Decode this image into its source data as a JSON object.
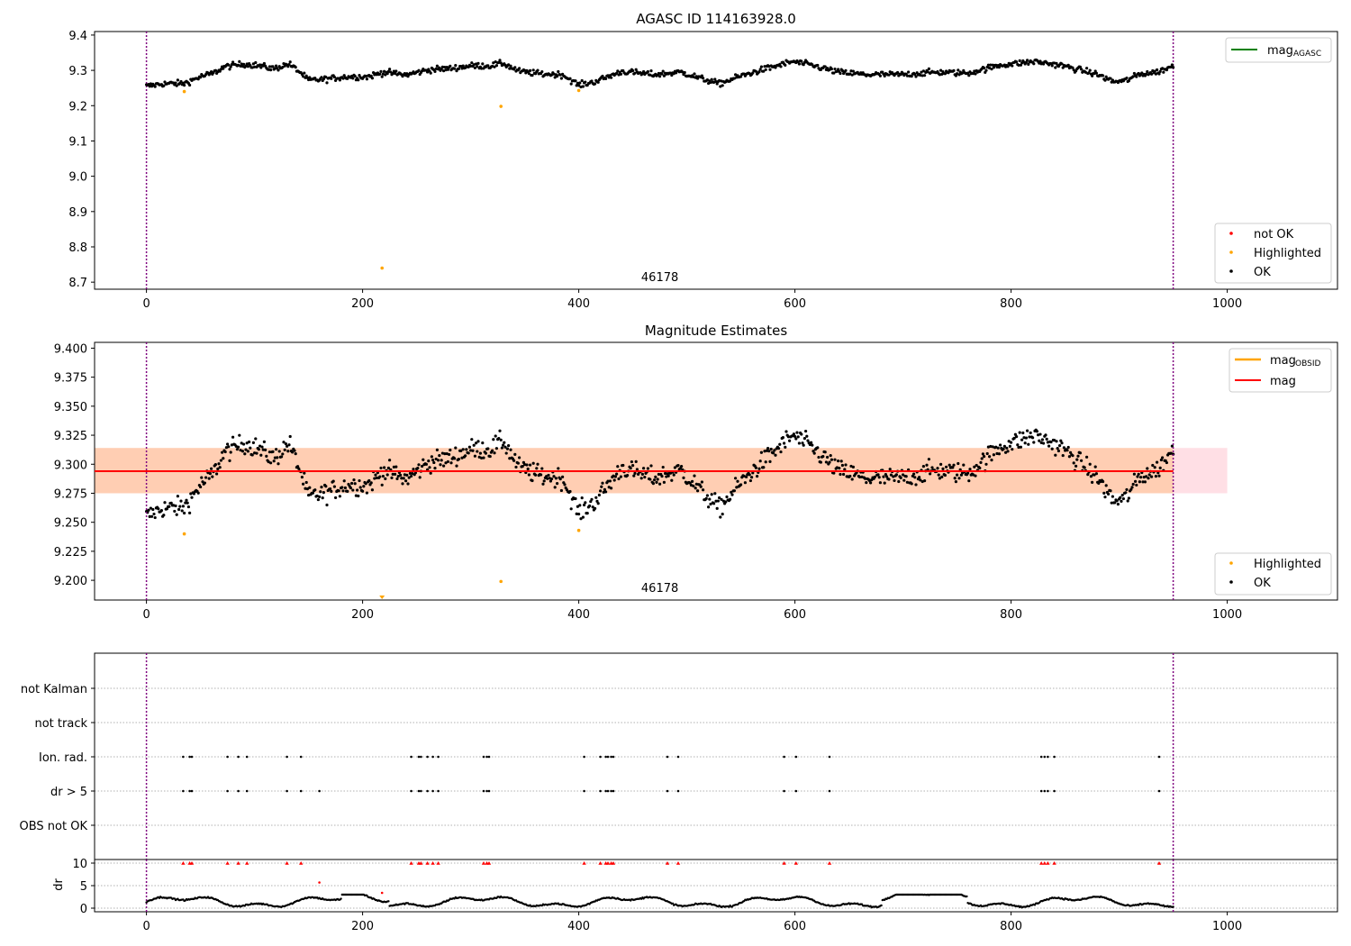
{
  "chart_data": [
    {
      "type": "scatter",
      "title": "AGASC ID 114163928.0",
      "xlabel": "",
      "ylabel": "",
      "xlim": [
        -48,
        1102
      ],
      "ylim": [
        8.68,
        9.41
      ],
      "xticks": [
        "0",
        "200",
        "400",
        "600",
        "800",
        "1000"
      ],
      "yticks": [
        "8.7",
        "8.8",
        "8.9",
        "9.0",
        "9.1",
        "9.2",
        "9.3",
        "9.4"
      ],
      "annotation": "46178",
      "vlines": [
        0,
        950
      ],
      "legend_upper": [
        {
          "label": "mag",
          "sub": "AGASC",
          "color": "#008000"
        }
      ],
      "legend_lower": [
        {
          "label": "not OK",
          "color": "#ff0000"
        },
        {
          "label": "Highlighted",
          "color": "#ffa500"
        },
        {
          "label": "OK",
          "color": "#000000"
        }
      ],
      "series": [
        {
          "name": "Highlighted",
          "color": "#ffa500",
          "points": [
            [
              35,
              9.24
            ],
            [
              218,
              8.74
            ],
            [
              328,
              9.198
            ],
            [
              400,
              9.243
            ]
          ]
        },
        {
          "name": "OK",
          "color": "#000000",
          "note": "~950 points, ~9.25–9.34, dense trace"
        }
      ]
    },
    {
      "type": "scatter",
      "title": "Magnitude Estimates",
      "xlabel": "",
      "ylabel": "",
      "xlim": [
        -48,
        1102
      ],
      "ylim": [
        9.183,
        9.405
      ],
      "xticks": [
        "0",
        "200",
        "400",
        "600",
        "800",
        "1000"
      ],
      "yticks": [
        "9.200",
        "9.225",
        "9.250",
        "9.275",
        "9.300",
        "9.325",
        "9.350",
        "9.375",
        "9.400"
      ],
      "annotation": "46178",
      "vlines": [
        0,
        950
      ],
      "mag": 9.294,
      "band_outer": [
        9.275,
        9.314
      ],
      "band_inner": [
        9.275,
        9.314
      ],
      "legend_upper": [
        {
          "label": "mag",
          "sub": "OBSID",
          "color": "#ffa500"
        },
        {
          "label": "mag",
          "color": "#ff0000"
        }
      ],
      "legend_lower": [
        {
          "label": "Highlighted",
          "color": "#ffa500"
        },
        {
          "label": "OK",
          "color": "#000000"
        }
      ],
      "series": [
        {
          "name": "Highlighted",
          "color": "#ffa500",
          "points": [
            [
              35,
              9.24
            ],
            [
              328,
              9.199
            ],
            [
              400,
              9.243
            ]
          ],
          "clipped": [
            [
              218,
              9.183
            ]
          ]
        },
        {
          "name": "OK",
          "color": "#000000"
        }
      ]
    },
    {
      "type": "scatter",
      "xlim": [
        -48,
        1102
      ],
      "categories": [
        "not Kalman",
        "not track",
        "Ion. rad.",
        "dr > 5",
        "OBS not OK"
      ],
      "flag_x": [
        34,
        40,
        42,
        75,
        85,
        93,
        130,
        143,
        245,
        252,
        254,
        260,
        265,
        270,
        312,
        315,
        317,
        405,
        420,
        425,
        427,
        430,
        432,
        482,
        492,
        590,
        601,
        632,
        828,
        831,
        834,
        840,
        937
      ],
      "dr_extra_x": [
        160
      ],
      "vlines": [
        0,
        950
      ]
    },
    {
      "type": "scatter",
      "ylabel": "dr",
      "xlim": [
        -48,
        1102
      ],
      "ylim": [
        -0.8,
        10.8
      ],
      "xticks": [
        "0",
        "200",
        "400",
        "600",
        "800",
        "1000"
      ],
      "yticks": [
        "0",
        "5",
        "10"
      ],
      "vlines": [
        0,
        950
      ],
      "clipped_red_x": [
        34,
        40,
        42,
        75,
        85,
        93,
        130,
        143,
        245,
        252,
        254,
        260,
        265,
        270,
        312,
        315,
        317,
        405,
        420,
        425,
        427,
        430,
        432,
        482,
        492,
        590,
        601,
        632,
        828,
        831,
        834,
        840,
        937
      ],
      "red_points": [
        [
          160,
          5.7
        ],
        [
          218,
          3.4
        ]
      ]
    }
  ]
}
